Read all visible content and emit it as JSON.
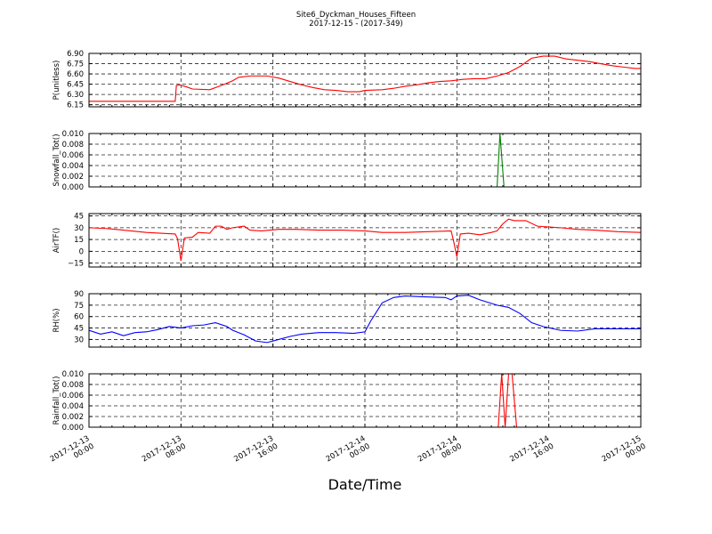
{
  "figure": {
    "title_line1": "Site6_Dyckman_Houses_Fifteen",
    "title_line2": "2017-12-15 - (2017-349)",
    "xlabel": "Date/Time",
    "x_tick_labels": [
      [
        "2017-12-13",
        "00:00"
      ],
      [
        "2017-12-13",
        "08:00"
      ],
      [
        "2017-12-13",
        "16:00"
      ],
      [
        "2017-12-14",
        "00:00"
      ],
      [
        "2017-12-14",
        "08:00"
      ],
      [
        "2017-12-14",
        "16:00"
      ],
      [
        "2017-12-15",
        "00:00"
      ]
    ]
  },
  "chart_data": [
    {
      "type": "line",
      "ylabel": "P(unitless)",
      "color": "#ff0000",
      "ylim": [
        6.12,
        6.9
      ],
      "yticks": [
        6.15,
        6.3,
        6.45,
        6.6,
        6.75,
        6.9
      ],
      "ytick_labels": [
        "6.15",
        "6.30",
        "6.45",
        "6.60",
        "6.75",
        "6.90"
      ],
      "x_unit": "hours since 2017-12-13 00:00",
      "xlim": [
        0,
        48
      ],
      "x": [
        0,
        7.5,
        7.6,
        7.9,
        8.5,
        9.0,
        10.5,
        11.5,
        12.5,
        13.0,
        14.0,
        15.5,
        16.5,
        17.5,
        18.5,
        19.5,
        20.5,
        21.5,
        22.5,
        23.5,
        24.0,
        25.5,
        26.5,
        27.5,
        28.5,
        29.5,
        30.5,
        31.5,
        32.5,
        33.5,
        34.5,
        35.5,
        36.5,
        37.5,
        38.5,
        39.5,
        40.5,
        41.5,
        42.5,
        43.5,
        44.5,
        45.5,
        46.5,
        47.5,
        48.0
      ],
      "y": [
        6.2,
        6.2,
        6.43,
        6.44,
        6.41,
        6.38,
        6.37,
        6.43,
        6.5,
        6.55,
        6.57,
        6.57,
        6.54,
        6.49,
        6.44,
        6.4,
        6.37,
        6.36,
        6.34,
        6.34,
        6.36,
        6.37,
        6.39,
        6.42,
        6.44,
        6.47,
        6.49,
        6.5,
        6.52,
        6.53,
        6.53,
        6.57,
        6.62,
        6.71,
        6.83,
        6.86,
        6.86,
        6.82,
        6.8,
        6.78,
        6.75,
        6.72,
        6.7,
        6.68,
        6.68
      ]
    },
    {
      "type": "line",
      "ylabel": "Snowfall_Tot()",
      "color": "#008000",
      "ylim": [
        0.0,
        0.01
      ],
      "yticks": [
        0.0,
        0.002,
        0.004,
        0.006,
        0.008,
        0.01
      ],
      "ytick_labels": [
        "0.000",
        "0.002",
        "0.004",
        "0.006",
        "0.008",
        "0.010"
      ],
      "x_unit": "hours since 2017-12-13 00:00",
      "xlim": [
        0,
        48
      ],
      "x": [
        0,
        35.5,
        35.75,
        36.1,
        48
      ],
      "y": [
        0.0,
        0.0,
        0.01,
        0.0,
        0.0
      ]
    },
    {
      "type": "line",
      "ylabel": "AirTF()",
      "color": "#ff0000",
      "ylim": [
        -20,
        48
      ],
      "yticks": [
        -15,
        0,
        15,
        30,
        45
      ],
      "ytick_labels": [
        "−15",
        "0",
        "15",
        "30",
        "45"
      ],
      "x_unit": "hours since 2017-12-13 00:00",
      "xlim": [
        0,
        48
      ],
      "x": [
        0,
        1.5,
        3.0,
        5.0,
        7.5,
        7.7,
        8.0,
        8.3,
        9.0,
        9.5,
        10.5,
        11.0,
        11.5,
        12.0,
        12.5,
        13.5,
        14.0,
        15.0,
        16.5,
        18.0,
        20.0,
        22.0,
        24.0,
        25.5,
        27.5,
        29.5,
        31.5,
        31.7,
        32.0,
        32.3,
        33.0,
        34.0,
        35.0,
        35.5,
        36.0,
        36.5,
        37.0,
        38.0,
        39.0,
        40.0,
        41.0,
        42.5,
        44.0,
        46.0,
        48.0
      ],
      "y": [
        30,
        29,
        27,
        24,
        22,
        16,
        -12,
        17,
        18,
        24,
        23,
        32,
        32,
        28,
        30,
        32,
        27,
        26,
        28,
        28,
        27,
        27,
        26,
        24,
        24,
        25,
        26,
        14,
        -7,
        22,
        23,
        21,
        24,
        26,
        35,
        41,
        39,
        39,
        32,
        31,
        30,
        28,
        27,
        25,
        24
      ]
    },
    {
      "type": "line",
      "ylabel": "RH(%)",
      "color": "#0000ff",
      "ylim": [
        20,
        90
      ],
      "yticks": [
        30,
        45,
        60,
        75,
        90
      ],
      "ytick_labels": [
        "30",
        "45",
        "60",
        "75",
        "90"
      ],
      "x_unit": "hours since 2017-12-13 00:00",
      "xlim": [
        0,
        48
      ],
      "x": [
        0,
        1.0,
        2.0,
        3.0,
        4.0,
        5.0,
        6.0,
        7.0,
        7.5,
        8.0,
        9.0,
        10.0,
        11.0,
        12.0,
        12.5,
        13.5,
        14.5,
        15.5,
        16.5,
        17.5,
        18.5,
        20.0,
        21.5,
        23.0,
        24.0,
        24.5,
        25.5,
        26.5,
        27.5,
        29.0,
        31.0,
        31.5,
        32.0,
        33.0,
        34.0,
        35.5,
        36.5,
        37.5,
        38.5,
        39.5,
        41.0,
        42.5,
        44.0,
        46.0,
        48.0
      ],
      "y": [
        42,
        37,
        40,
        35,
        39,
        40,
        43,
        47,
        46,
        45,
        48,
        49,
        52,
        47,
        42,
        36,
        28,
        26,
        30,
        34,
        37,
        39,
        39,
        38,
        40,
        54,
        78,
        85,
        87,
        86,
        85,
        82,
        87,
        88,
        82,
        75,
        72,
        64,
        52,
        47,
        42,
        41,
        44,
        44,
        44
      ]
    },
    {
      "type": "line",
      "ylabel": "Rainfall_Tot()",
      "color": "#ff0000",
      "ylim": [
        0.0,
        0.01
      ],
      "yticks": [
        0.0,
        0.002,
        0.004,
        0.006,
        0.008,
        0.01
      ],
      "ytick_labels": [
        "0.000",
        "0.002",
        "0.004",
        "0.006",
        "0.008",
        "0.010"
      ],
      "x_unit": "hours since 2017-12-13 00:00",
      "xlim": [
        0,
        48
      ],
      "x": [
        0,
        35.6,
        35.9,
        36.2,
        36.5,
        36.8,
        37.2,
        48
      ],
      "y": [
        0.0,
        0.0,
        0.01,
        0.0,
        0.01,
        0.01,
        0.0,
        0.0
      ]
    }
  ]
}
